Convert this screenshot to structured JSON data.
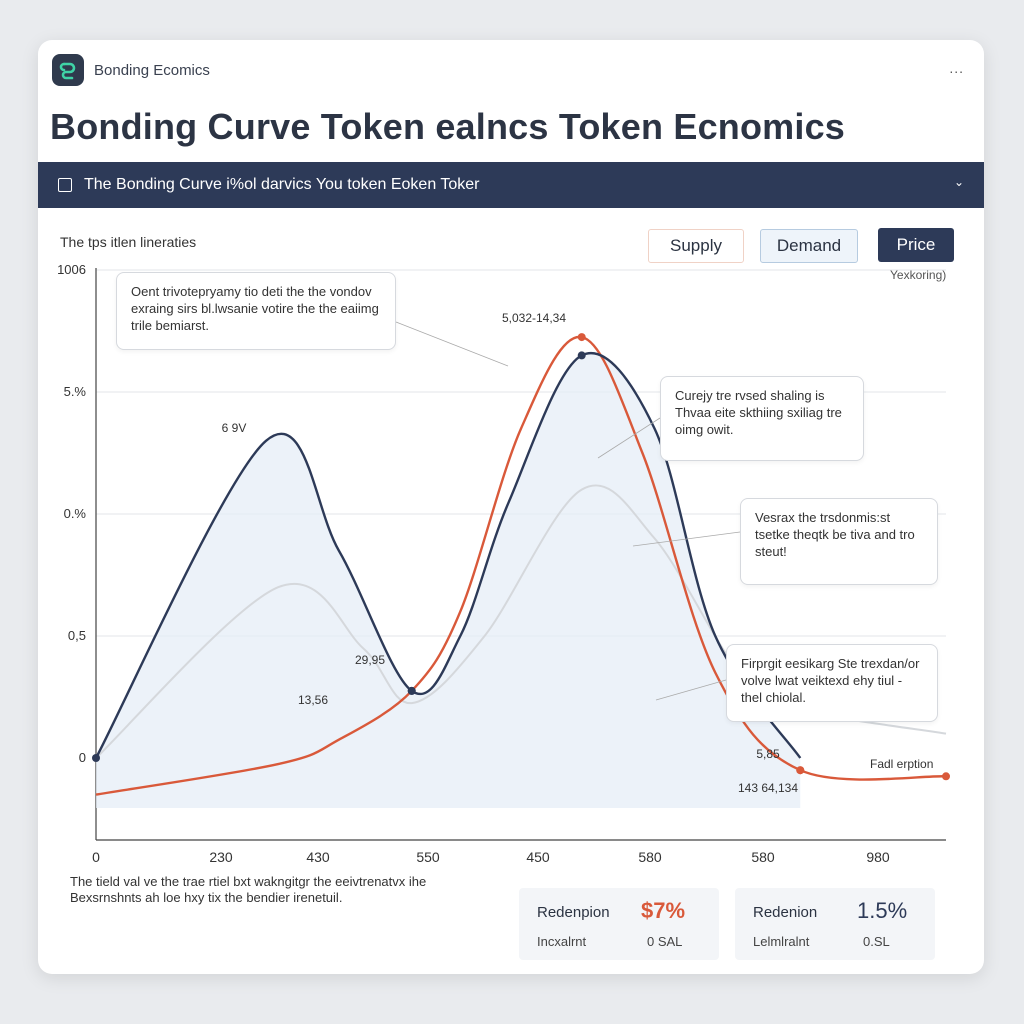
{
  "app": {
    "name": "Bonding Ecomics",
    "more": "..."
  },
  "title": "Bonding Curve Token ealncs Token Ecnomics",
  "banner": {
    "text": "The Bonding Curve i%ol darvics You token Eoken Toker",
    "chevron": "⌄"
  },
  "subtitle": "The tps itlen lineraties",
  "buttons": {
    "supply": "Supply",
    "demand": "Demand",
    "price": "Price"
  },
  "right_label": "Yexkoring)",
  "colors": {
    "navy": "#2d3a58",
    "orange": "#d9593a",
    "grey": "#d5d8dc",
    "fill": "#e6eef7"
  },
  "icons": {
    "logo": "bonding-logo-icon",
    "more": "more-icon",
    "banner": "document-icon",
    "chevron": "chevron-down-icon"
  },
  "chart_data": {
    "type": "line",
    "y_tick_labels": [
      "0",
      "0,5",
      "0.%",
      "5.%",
      "1006"
    ],
    "x_tick_labels": [
      "0",
      "230",
      "430",
      "550",
      "450",
      "580",
      "580",
      "980"
    ],
    "series": [
      {
        "color": "#2d3a58",
        "values": [
          [
            0,
            0
          ],
          [
            1.4,
            2.6
          ],
          [
            2.0,
            1.7
          ],
          [
            2.6,
            0.55
          ],
          [
            3.0,
            1.0
          ],
          [
            3.4,
            2.1
          ],
          [
            4.0,
            3.3
          ],
          [
            4.6,
            2.7
          ],
          [
            5.1,
            1.0
          ],
          [
            5.8,
            0.0
          ]
        ]
      },
      {
        "color": "#d9593a",
        "values": [
          [
            0,
            -0.3
          ],
          [
            1.5,
            -0.05
          ],
          [
            2.0,
            0.15
          ],
          [
            2.6,
            0.55
          ],
          [
            3.0,
            1.2
          ],
          [
            3.5,
            2.7
          ],
          [
            4.0,
            3.45
          ],
          [
            4.5,
            2.5
          ],
          [
            5.1,
            0.7
          ],
          [
            5.8,
            -0.1
          ],
          [
            7.0,
            -0.15
          ]
        ]
      },
      {
        "color": "#d5d8dc",
        "values": [
          [
            0,
            0
          ],
          [
            1.5,
            1.4
          ],
          [
            2.2,
            0.9
          ],
          [
            2.6,
            0.45
          ],
          [
            3.2,
            1.0
          ],
          [
            4.0,
            2.2
          ],
          [
            4.6,
            1.8
          ],
          [
            5.3,
            0.7
          ],
          [
            5.8,
            0.4
          ],
          [
            7.0,
            0.2
          ]
        ]
      }
    ],
    "points": [
      {
        "series": 0,
        "x": 0,
        "y": 0,
        "label": ""
      },
      {
        "series": 0,
        "x": 2.6,
        "y": 0.55,
        "label": "13,56"
      },
      {
        "series": 0,
        "x": 2.6,
        "y": 0.55,
        "label": "29,95"
      },
      {
        "series": 0,
        "x": 4.0,
        "y": 3.3,
        "label": ""
      },
      {
        "series": 1,
        "x": 4.0,
        "y": 3.45,
        "label": "5,032-14,34"
      },
      {
        "series": 1,
        "x": 5.8,
        "y": -0.1,
        "label": "5,85"
      },
      {
        "series": 1,
        "x": 5.8,
        "y": -0.1,
        "label": "143 64,134"
      },
      {
        "series": 1,
        "x": 7.0,
        "y": -0.15,
        "label": "Fadl erption"
      }
    ],
    "peak_label": "6 9V",
    "annotations": [
      "Oent trivotepryamy tio deti the the vondov exraing sirs bl.lwsanie votire the the eaiimg trile bemiarst.",
      "Curejy tre rvsed shaling is Thvaa eite skthiing sxiliag tre oimg owit.",
      "Vesrax the trsdonmis:st tsetke theqtk be tiva and tro steut!",
      "Firprgit eesikarg Ste trexdan/or volve lwat veiktexd ehy tiul - thel chiolal."
    ]
  },
  "footer_note": "The tield val ve the trae rtiel bxt wakngitgr the eeivtrenatvx ihe Bexsrnshnts ah loe hxy tix the bendier irenetuil.",
  "stats": [
    {
      "label": "Redenpion",
      "value": "$7%",
      "color": "#d9593a",
      "sub_label": "Incxalrnt",
      "sub_value": "0 SAL"
    },
    {
      "label": "Redenion",
      "value": "1.5%",
      "color": "#2d3a58",
      "sub_label": "Lelmlralnt",
      "sub_value": "0.SL"
    }
  ]
}
